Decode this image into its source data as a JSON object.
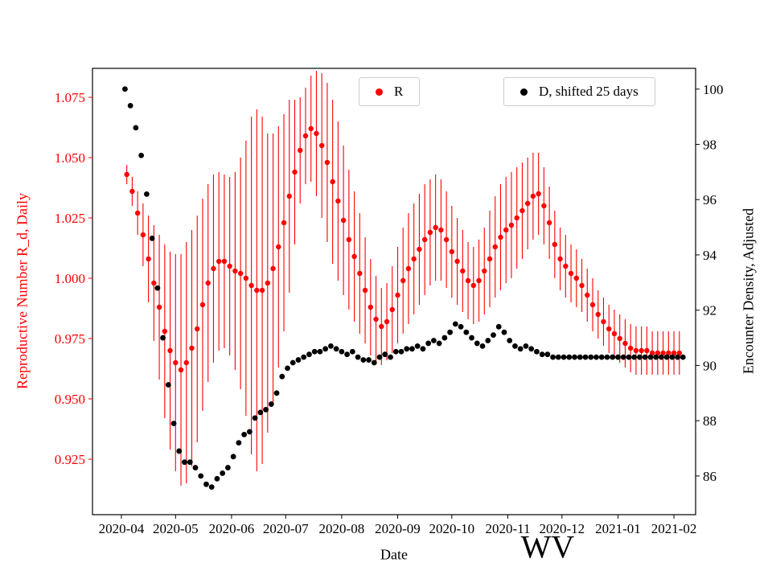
{
  "chart_data": {
    "type": "scatter",
    "title": "",
    "annotation": "WV",
    "xlabel": "Date",
    "legend_position": "top",
    "x_axis": {
      "lim_days": [
        -16,
        318
      ],
      "tick_days": [
        0,
        30,
        61,
        91,
        122,
        153,
        183,
        214,
        244,
        275,
        306
      ],
      "tick_labels": [
        "2020-04",
        "2020-05",
        "2020-06",
        "2020-07",
        "2020-08",
        "2020-09",
        "2020-10",
        "2020-11",
        "2020-12",
        "2021-01",
        "2021-02"
      ]
    },
    "left_axis": {
      "label": "Reproductive Number R_d, Daily",
      "color": "#ff0000",
      "lim": [
        0.902,
        1.087
      ],
      "ticks": [
        0.925,
        0.95,
        0.975,
        1.0,
        1.025,
        1.05,
        1.075
      ],
      "tick_labels": [
        "0.925",
        "0.950",
        "0.975",
        "1.000",
        "1.025",
        "1.050",
        "1.075"
      ]
    },
    "right_axis": {
      "label": "Encounter Density, Adjusted",
      "color": "#000000",
      "lim": [
        84.6,
        100.75
      ],
      "ticks": [
        86,
        88,
        90,
        92,
        94,
        96,
        98,
        100
      ],
      "tick_labels": [
        "86",
        "88",
        "90",
        "92",
        "94",
        "96",
        "98",
        "100"
      ]
    },
    "series": [
      {
        "name": "R",
        "axis": "left",
        "color": "#ff0000",
        "marker": "dot",
        "has_error_bars": true,
        "points": [
          [
            3,
            1.043,
            0.004
          ],
          [
            6,
            1.036,
            0.006
          ],
          [
            9,
            1.027,
            0.009
          ],
          [
            12,
            1.018,
            0.013
          ],
          [
            15,
            1.008,
            0.018
          ],
          [
            18,
            0.998,
            0.024
          ],
          [
            21,
            0.988,
            0.03
          ],
          [
            24,
            0.978,
            0.036
          ],
          [
            27,
            0.97,
            0.041
          ],
          [
            30,
            0.965,
            0.045
          ],
          [
            33,
            0.962,
            0.048
          ],
          [
            36,
            0.965,
            0.05
          ],
          [
            39,
            0.971,
            0.049
          ],
          [
            42,
            0.979,
            0.047
          ],
          [
            45,
            0.989,
            0.044
          ],
          [
            48,
            0.998,
            0.041
          ],
          [
            51,
            1.004,
            0.039
          ],
          [
            54,
            1.007,
            0.037
          ],
          [
            57,
            1.007,
            0.036
          ],
          [
            60,
            1.005,
            0.037
          ],
          [
            63,
            1.003,
            0.041
          ],
          [
            66,
            1.002,
            0.048
          ],
          [
            69,
            1.0,
            0.057
          ],
          [
            72,
            0.997,
            0.07
          ],
          [
            75,
            0.995,
            0.075
          ],
          [
            78,
            0.995,
            0.072
          ],
          [
            81,
            0.998,
            0.062
          ],
          [
            84,
            1.004,
            0.056
          ],
          [
            87,
            1.013,
            0.05
          ],
          [
            90,
            1.023,
            0.045
          ],
          [
            93,
            1.034,
            0.04
          ],
          [
            96,
            1.044,
            0.03
          ],
          [
            99,
            1.053,
            0.022
          ],
          [
            102,
            1.059,
            0.02
          ],
          [
            105,
            1.062,
            0.022
          ],
          [
            108,
            1.06,
            0.026
          ],
          [
            111,
            1.055,
            0.03
          ],
          [
            114,
            1.048,
            0.033
          ],
          [
            117,
            1.04,
            0.034
          ],
          [
            120,
            1.032,
            0.033
          ],
          [
            123,
            1.024,
            0.031
          ],
          [
            126,
            1.016,
            0.029
          ],
          [
            129,
            1.009,
            0.027
          ],
          [
            132,
            1.002,
            0.025
          ],
          [
            135,
            0.995,
            0.022
          ],
          [
            138,
            0.988,
            0.02
          ],
          [
            141,
            0.983,
            0.018
          ],
          [
            144,
            0.98,
            0.016
          ],
          [
            147,
            0.982,
            0.016
          ],
          [
            150,
            0.987,
            0.018
          ],
          [
            153,
            0.993,
            0.02
          ],
          [
            156,
            0.999,
            0.022
          ],
          [
            159,
            1.004,
            0.023
          ],
          [
            162,
            1.008,
            0.023
          ],
          [
            165,
            1.012,
            0.023
          ],
          [
            168,
            1.016,
            0.023
          ],
          [
            171,
            1.019,
            0.022
          ],
          [
            174,
            1.021,
            0.022
          ],
          [
            177,
            1.02,
            0.021
          ],
          [
            180,
            1.016,
            0.02
          ],
          [
            183,
            1.011,
            0.019
          ],
          [
            186,
            1.007,
            0.018
          ],
          [
            189,
            1.003,
            0.017
          ],
          [
            192,
            0.999,
            0.016
          ],
          [
            195,
            0.997,
            0.016
          ],
          [
            198,
            0.999,
            0.017
          ],
          [
            201,
            1.003,
            0.018
          ],
          [
            204,
            1.008,
            0.02
          ],
          [
            207,
            1.013,
            0.021
          ],
          [
            210,
            1.017,
            0.022
          ],
          [
            213,
            1.02,
            0.022
          ],
          [
            216,
            1.022,
            0.022
          ],
          [
            219,
            1.025,
            0.021
          ],
          [
            222,
            1.028,
            0.02
          ],
          [
            225,
            1.031,
            0.019
          ],
          [
            228,
            1.034,
            0.018
          ],
          [
            231,
            1.035,
            0.017
          ],
          [
            234,
            1.03,
            0.016
          ],
          [
            237,
            1.023,
            0.015
          ],
          [
            240,
            1.014,
            0.014
          ],
          [
            243,
            1.008,
            0.013
          ],
          [
            246,
            1.005,
            0.013
          ],
          [
            249,
            1.002,
            0.012
          ],
          [
            252,
            1.0,
            0.012
          ],
          [
            255,
            0.997,
            0.011
          ],
          [
            258,
            0.993,
            0.011
          ],
          [
            261,
            0.989,
            0.011
          ],
          [
            264,
            0.985,
            0.01
          ],
          [
            267,
            0.982,
            0.01
          ],
          [
            270,
            0.979,
            0.01
          ],
          [
            273,
            0.977,
            0.01
          ],
          [
            276,
            0.975,
            0.01
          ],
          [
            279,
            0.973,
            0.01
          ],
          [
            282,
            0.971,
            0.01
          ],
          [
            285,
            0.97,
            0.01
          ],
          [
            288,
            0.97,
            0.01
          ],
          [
            291,
            0.97,
            0.01
          ],
          [
            294,
            0.969,
            0.009
          ],
          [
            297,
            0.969,
            0.009
          ],
          [
            300,
            0.969,
            0.009
          ],
          [
            303,
            0.969,
            0.009
          ],
          [
            306,
            0.969,
            0.009
          ],
          [
            309,
            0.969,
            0.009
          ]
        ]
      },
      {
        "name": "D, shifted 25 days",
        "axis": "right",
        "color": "#000000",
        "marker": "dot",
        "has_error_bars": false,
        "points": [
          [
            2,
            100.0
          ],
          [
            5,
            99.4
          ],
          [
            8,
            98.6
          ],
          [
            11,
            97.6
          ],
          [
            14,
            96.2
          ],
          [
            17,
            94.6
          ],
          [
            20,
            92.8
          ],
          [
            23,
            91.0
          ],
          [
            26,
            89.3
          ],
          [
            29,
            87.9
          ],
          [
            32,
            86.9
          ],
          [
            35,
            86.5
          ],
          [
            38,
            86.5
          ],
          [
            41,
            86.3
          ],
          [
            44,
            86.0
          ],
          [
            47,
            85.7
          ],
          [
            50,
            85.6
          ],
          [
            53,
            85.9
          ],
          [
            56,
            86.1
          ],
          [
            59,
            86.3
          ],
          [
            62,
            86.7
          ],
          [
            65,
            87.2
          ],
          [
            68,
            87.5
          ],
          [
            71,
            87.6
          ],
          [
            74,
            88.1
          ],
          [
            77,
            88.3
          ],
          [
            80,
            88.4
          ],
          [
            83,
            88.6
          ],
          [
            86,
            89.0
          ],
          [
            89,
            89.6
          ],
          [
            92,
            89.9
          ],
          [
            95,
            90.1
          ],
          [
            98,
            90.2
          ],
          [
            101,
            90.3
          ],
          [
            104,
            90.4
          ],
          [
            107,
            90.5
          ],
          [
            110,
            90.5
          ],
          [
            113,
            90.6
          ],
          [
            116,
            90.7
          ],
          [
            119,
            90.6
          ],
          [
            122,
            90.5
          ],
          [
            125,
            90.4
          ],
          [
            128,
            90.5
          ],
          [
            131,
            90.3
          ],
          [
            134,
            90.2
          ],
          [
            137,
            90.2
          ],
          [
            140,
            90.1
          ],
          [
            143,
            90.3
          ],
          [
            146,
            90.4
          ],
          [
            149,
            90.3
          ],
          [
            152,
            90.5
          ],
          [
            155,
            90.5
          ],
          [
            158,
            90.6
          ],
          [
            161,
            90.6
          ],
          [
            164,
            90.7
          ],
          [
            167,
            90.6
          ],
          [
            170,
            90.8
          ],
          [
            173,
            90.9
          ],
          [
            176,
            90.8
          ],
          [
            179,
            91.0
          ],
          [
            182,
            91.2
          ],
          [
            185,
            91.5
          ],
          [
            188,
            91.4
          ],
          [
            191,
            91.2
          ],
          [
            194,
            91.0
          ],
          [
            197,
            90.8
          ],
          [
            200,
            90.7
          ],
          [
            203,
            90.9
          ],
          [
            206,
            91.1
          ],
          [
            209,
            91.4
          ],
          [
            212,
            91.2
          ],
          [
            215,
            90.9
          ],
          [
            218,
            90.7
          ],
          [
            221,
            90.6
          ],
          [
            224,
            90.7
          ],
          [
            227,
            90.6
          ],
          [
            230,
            90.5
          ],
          [
            233,
            90.4
          ],
          [
            236,
            90.4
          ],
          [
            239,
            90.3
          ],
          [
            242,
            90.3
          ],
          [
            245,
            90.3
          ],
          [
            248,
            90.3
          ],
          [
            251,
            90.3
          ],
          [
            254,
            90.3
          ],
          [
            257,
            90.3
          ],
          [
            260,
            90.3
          ],
          [
            263,
            90.3
          ],
          [
            266,
            90.3
          ],
          [
            269,
            90.3
          ],
          [
            272,
            90.3
          ],
          [
            275,
            90.3
          ],
          [
            278,
            90.3
          ],
          [
            281,
            90.3
          ],
          [
            284,
            90.3
          ],
          [
            287,
            90.3
          ],
          [
            290,
            90.3
          ],
          [
            293,
            90.3
          ],
          [
            296,
            90.3
          ],
          [
            299,
            90.3
          ],
          [
            302,
            90.3
          ],
          [
            305,
            90.3
          ],
          [
            308,
            90.3
          ],
          [
            311,
            90.3
          ]
        ]
      }
    ]
  }
}
